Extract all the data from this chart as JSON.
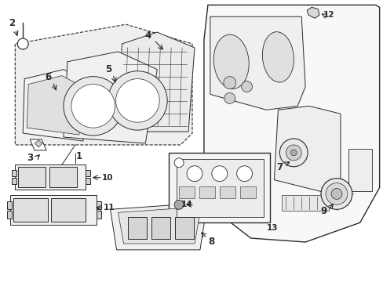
{
  "bg_color": "#ffffff",
  "line_color": "#2a2a2a",
  "figsize": [
    4.89,
    3.6
  ],
  "dpi": 100,
  "label_fs": 7.5,
  "lw": 0.7
}
